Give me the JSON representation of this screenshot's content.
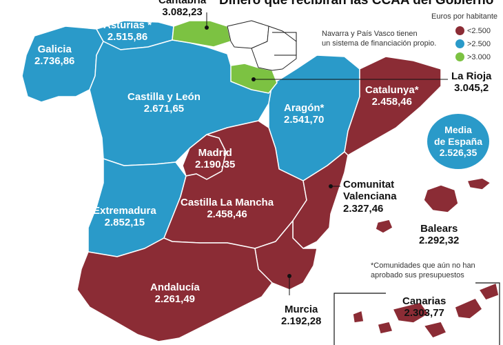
{
  "title_partial": "Dinero que recibirán las CCAA del Gobierno",
  "legend": {
    "title": "Euros por habitante",
    "items": [
      {
        "label": "<2.500",
        "color": "#8b2c35"
      },
      {
        "label": ">2.500",
        "color": "#2a9ac9"
      },
      {
        "label": ">3.000",
        "color": "#7cc242"
      }
    ]
  },
  "regions": {
    "galicia": {
      "name": "Galicia",
      "value": "2.736,86"
    },
    "asturias": {
      "name": "Asturias *",
      "value": "2.515,86"
    },
    "cantabria": {
      "name": "Cantabria",
      "value": "3.082,23"
    },
    "castilla_leon": {
      "name": "Castilla y León",
      "value": "2.671,65"
    },
    "la_rioja": {
      "name": "La Rioja",
      "value": "3.045,2"
    },
    "aragon": {
      "name": "Aragón*",
      "value": "2.541,70"
    },
    "catalunya": {
      "name": "Catalunya*",
      "value": "2.458,46"
    },
    "madrid": {
      "name": "Madrid",
      "value": "2.190,35"
    },
    "extremadura": {
      "name": "Extremadura",
      "value": "2.852,15"
    },
    "castilla_la_mancha": {
      "name": "Castilla La Mancha",
      "value": "2.458,46"
    },
    "valenciana_line1": {
      "name": "Comunitat"
    },
    "valenciana": {
      "name": "Valenciana",
      "value": "2.327,46"
    },
    "balears": {
      "name": "Balears",
      "value": "2.292,32"
    },
    "andalucia": {
      "name": "Andalucía",
      "value": "2.261,49"
    },
    "murcia": {
      "name": "Murcia",
      "value": "2.192,28"
    },
    "canarias": {
      "name": "Canarias",
      "value": "2.303,77"
    }
  },
  "average": {
    "line1": "Media",
    "line2": "de España",
    "value": "2.526,35"
  },
  "notes": {
    "navarra_pv": [
      "Navarra y País Vasco tienen",
      "un sistema de financiación propio."
    ],
    "pending": [
      "*Comunidades que aún no han",
      "aprobado sus presupuestos"
    ]
  }
}
